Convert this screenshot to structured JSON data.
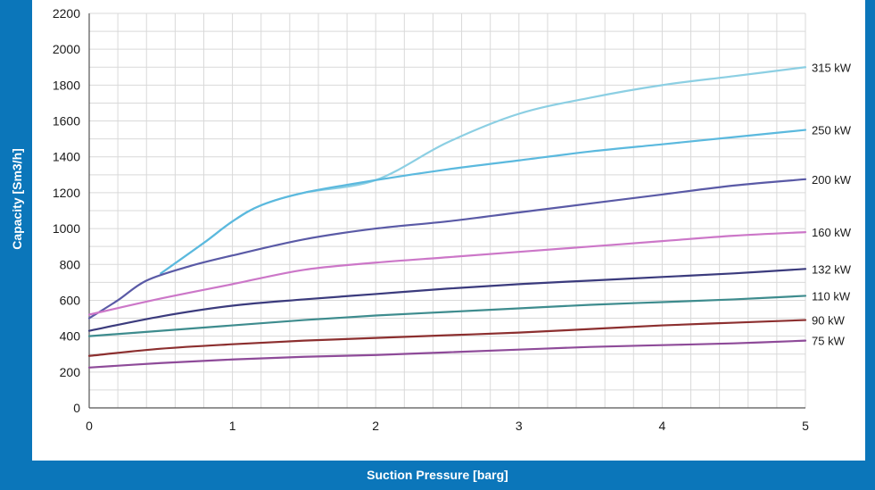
{
  "chart_data": {
    "type": "line",
    "title": "",
    "xlabel": "Suction Pressure [barg]",
    "ylabel": "Capacity [Sm3/h]",
    "xlim": [
      0,
      5
    ],
    "ylim": [
      0,
      2200
    ],
    "x_ticks": [
      0,
      1,
      2,
      3,
      4,
      5
    ],
    "y_ticks": [
      0,
      200,
      400,
      600,
      800,
      1000,
      1200,
      1400,
      1600,
      1800,
      2000,
      2200
    ],
    "grid": true,
    "legend": "none",
    "series": [
      {
        "name": "315 kW",
        "color": "#8ccfe3",
        "x": [
          0.5,
          0.8,
          1.0,
          1.2,
          1.5,
          2.0,
          2.5,
          3.0,
          3.5,
          4.0,
          4.5,
          5.0
        ],
        "y": [
          750,
          920,
          1040,
          1130,
          1200,
          1270,
          1480,
          1640,
          1730,
          1800,
          1850,
          1900
        ]
      },
      {
        "name": "250 kW",
        "color": "#5bb9de",
        "x": [
          0.5,
          0.8,
          1.0,
          1.2,
          1.5,
          2.0,
          2.5,
          3.0,
          3.5,
          4.0,
          4.5,
          5.0
        ],
        "y": [
          750,
          920,
          1040,
          1130,
          1200,
          1270,
          1330,
          1380,
          1430,
          1470,
          1510,
          1550
        ]
      },
      {
        "name": "200 kW",
        "color": "#5a5aa6",
        "x": [
          0,
          0.2,
          0.4,
          0.7,
          1.0,
          1.5,
          2.0,
          2.5,
          3.0,
          3.5,
          4.0,
          4.5,
          5.0
        ],
        "y": [
          500,
          600,
          710,
          790,
          850,
          940,
          1000,
          1040,
          1090,
          1140,
          1190,
          1240,
          1275
        ]
      },
      {
        "name": "160 kW",
        "color": "#cc77c8",
        "x": [
          0,
          0.5,
          1.0,
          1.5,
          2.0,
          2.5,
          3.0,
          3.5,
          4.0,
          4.5,
          5.0
        ],
        "y": [
          520,
          610,
          690,
          770,
          810,
          840,
          870,
          900,
          930,
          960,
          980
        ]
      },
      {
        "name": "132 kW",
        "color": "#3b3b7d",
        "x": [
          0,
          0.5,
          1.0,
          1.5,
          2.0,
          2.5,
          3.0,
          3.5,
          4.0,
          4.5,
          5.0
        ],
        "y": [
          430,
          510,
          570,
          605,
          635,
          665,
          690,
          710,
          730,
          750,
          775
        ]
      },
      {
        "name": "110 kW",
        "color": "#3e8c8e",
        "x": [
          0,
          0.5,
          1.0,
          1.5,
          2.0,
          2.5,
          3.0,
          3.5,
          4.0,
          4.5,
          5.0
        ],
        "y": [
          400,
          430,
          460,
          490,
          515,
          535,
          555,
          575,
          590,
          605,
          625
        ]
      },
      {
        "name": "90 kW",
        "color": "#8c2f2f",
        "x": [
          0,
          0.5,
          1.0,
          1.5,
          2.0,
          2.5,
          3.0,
          3.5,
          4.0,
          4.5,
          5.0
        ],
        "y": [
          290,
          330,
          355,
          375,
          390,
          405,
          420,
          440,
          460,
          475,
          490
        ]
      },
      {
        "name": "75 kW",
        "color": "#8e4b99",
        "x": [
          0,
          0.5,
          1.0,
          1.5,
          2.0,
          2.5,
          3.0,
          3.5,
          4.0,
          4.5,
          5.0
        ],
        "y": [
          225,
          250,
          270,
          285,
          295,
          310,
          325,
          340,
          350,
          360,
          375
        ]
      }
    ]
  }
}
